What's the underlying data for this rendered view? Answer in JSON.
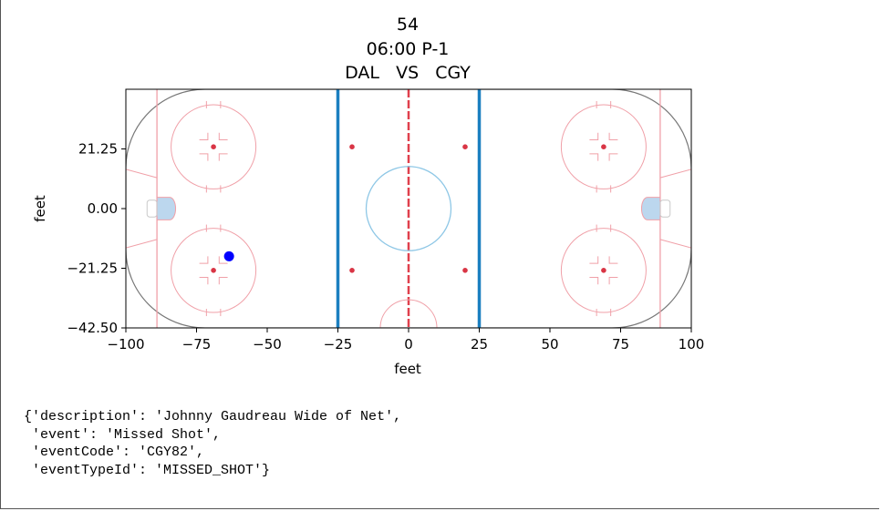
{
  "chart_data": {
    "type": "scatter",
    "title_lines": [
      "54",
      "06:00  P-1",
      "DAL   VS   CGY"
    ],
    "xlabel": "feet",
    "ylabel": "feet",
    "xlim": [
      -100,
      100
    ],
    "ylim": [
      -42.5,
      42.5
    ],
    "xticks": [
      -100,
      -75,
      -50,
      -25,
      0,
      25,
      50,
      75,
      100
    ],
    "xtick_labels": [
      "−100",
      "−75",
      "−50",
      "−25",
      "0",
      "25",
      "50",
      "75",
      "100"
    ],
    "yticks": [
      21.25,
      0,
      -21.25,
      -42.5
    ],
    "ytick_labels": [
      "21.25",
      "0.00",
      "−21.25",
      "−42.50"
    ],
    "points": [
      {
        "x": -63.5,
        "y": -17,
        "color": "#0000ff"
      }
    ],
    "grid": false,
    "background": "rink",
    "colors": {
      "rink_red": "#f0a0a8",
      "dot_red": "#d93545",
      "blue_line": "#1b7fc0",
      "center_red": "#e0404d",
      "center_circle": "#8ec7e6",
      "crease_fill": "#bcd7ee",
      "boards": "#777777"
    }
  },
  "output_text": "{'description': 'Johnny Gaudreau Wide of Net',\n 'event': 'Missed Shot',\n 'eventCode': 'CGY82',\n 'eventTypeId': 'MISSED_SHOT'}"
}
